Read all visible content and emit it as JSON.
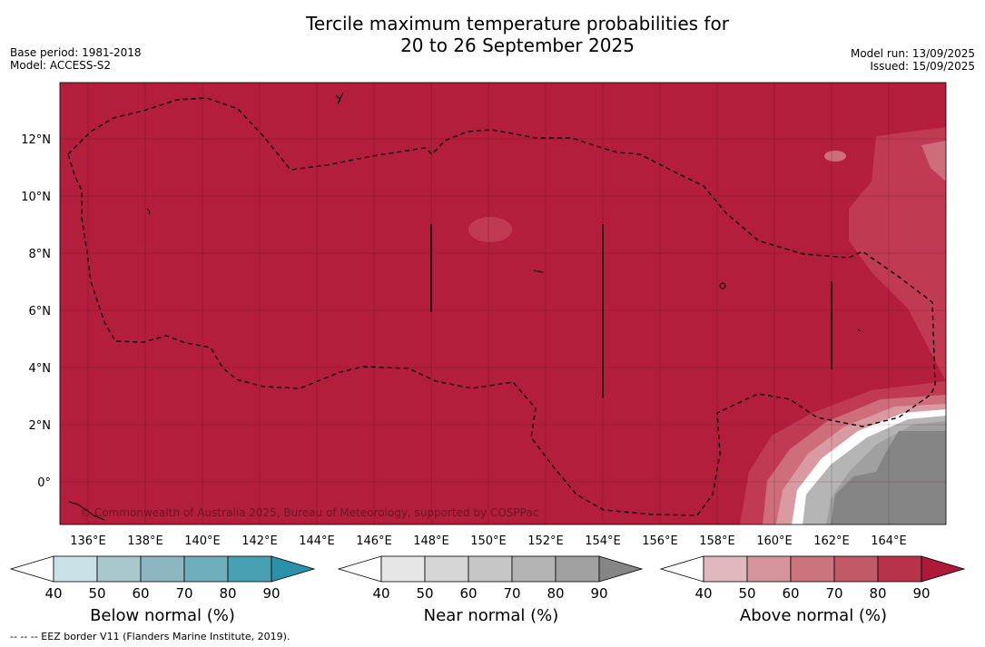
{
  "header": {
    "title_line1": "Tercile maximum temperature probabilities for",
    "title_line2": "20 to 26 September 2025",
    "base_period": "Base period: 1981-2018",
    "model": "Model: ACCESS-S2",
    "model_run": "Model run: 13/09/2025",
    "issued": "Issued: 15/09/2025"
  },
  "map": {
    "copyright": "© Commonwealth of Australia 2025, Bureau of Meteorology, supported by COSPPac",
    "lon_ticks": [
      "136°E",
      "138°E",
      "140°E",
      "142°E",
      "144°E",
      "146°E",
      "148°E",
      "150°E",
      "152°E",
      "154°E",
      "156°E",
      "158°E",
      "160°E",
      "162°E",
      "164°E"
    ],
    "lat_ticks": [
      "12°N",
      "10°N",
      "8°N",
      "6°N",
      "4°N",
      "2°N",
      "0°"
    ],
    "colors": {
      "above_90": "#b31e3c",
      "above_80": "#c03a52",
      "above_70": "#cd6e7a",
      "above_60": "#d99aa1",
      "near_90": "#858585",
      "near_80": "#a0a0a0",
      "near_70": "#b5b5b5"
    }
  },
  "legends": [
    {
      "label": "Below normal (%)",
      "ticks": [
        "40",
        "50",
        "60",
        "70",
        "80",
        "90"
      ],
      "colors": [
        "#ffffff",
        "#c8e2e8",
        "#a8c8ce",
        "#8cb6c0",
        "#6eaebd",
        "#4aa0b3",
        "#2b91a8"
      ]
    },
    {
      "label": "Near normal (%)",
      "ticks": [
        "40",
        "50",
        "60",
        "70",
        "80",
        "90"
      ],
      "colors": [
        "#ffffff",
        "#e6e6e6",
        "#d5d5d5",
        "#c6c6c6",
        "#b4b4b4",
        "#a1a1a1",
        "#858585"
      ]
    },
    {
      "label": "Above normal (%)",
      "ticks": [
        "40",
        "50",
        "60",
        "70",
        "80",
        "90"
      ],
      "colors": [
        "#ffffff",
        "#e0b8bd",
        "#d6959c",
        "#cc747d",
        "#c15a66",
        "#b8334a",
        "#ac1a38"
      ]
    }
  ],
  "footnote": "--  --  -- EEZ border V11 (Flanders Marine Institute, 2019)."
}
